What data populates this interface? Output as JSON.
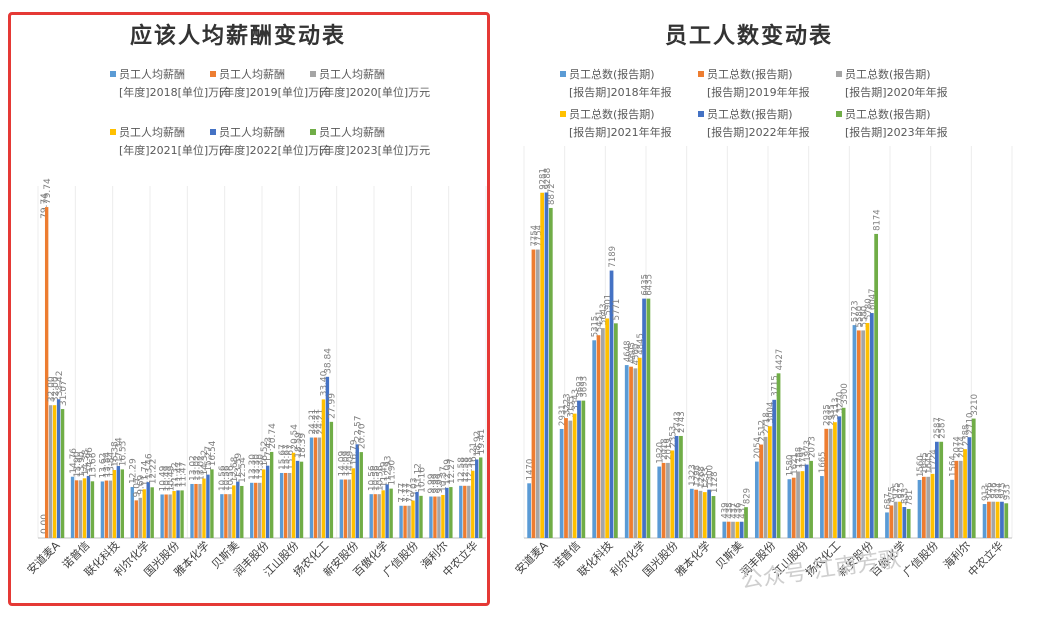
{
  "charts": {
    "left_title": "应该人均薪酬变动表",
    "right_title": "员工人数变动表"
  },
  "watermark": "公众号·江南芳歌",
  "chart_data": [
    {
      "type": "bar",
      "title": "应该人均薪酬变动表",
      "y_axis_labels": [
        "79.74",
        "0.00"
      ],
      "ylim": [
        0,
        80
      ],
      "legend_position": "top",
      "categories": [
        "安道麦A",
        "诺普信",
        "联化科技",
        "利尔化学",
        "国光股份",
        "雅本化学",
        "贝斯美",
        "润丰股份",
        "江山股份",
        "扬农化工",
        "新安股份",
        "百傲化学",
        "广信股份",
        "海利尔",
        "中农立华"
      ],
      "series": [
        {
          "name": "员工人均薪酬[年度]2018[单位]万元",
          "color": "#5b9bd5",
          "values": [
            null,
            14.76,
            13.62,
            12.29,
            10.49,
            13.02,
            10.56,
            13.3,
            15.67,
            24.21,
            14.09,
            10.56,
            7.77,
            9.99,
            12.58
          ]
        },
        {
          "name": "员工人均薪酬[年度]2019[单位]万元",
          "color": "#ed7d31",
          "values": [
            79.74,
            13.9,
            13.84,
            9.07,
            10.49,
            13.02,
            10.56,
            13.3,
            15.67,
            24.21,
            14.09,
            10.56,
            7.77,
            9.99,
            12.58
          ]
        },
        {
          "name": "员工人均薪酬[年度]2020[单位]万元",
          "color": "#a5a5a5",
          "values": [
            32.0,
            13.9,
            13.84,
            9.69,
            10.49,
            13.02,
            10.56,
            13.3,
            15.67,
            24.21,
            14.09,
            10.56,
            7.77,
            9.99,
            12.58
          ]
        },
        {
          "name": "员工人均薪酬[年度]2021[单位]万元",
          "color": "#ffc000",
          "values": [
            32.0,
            14.38,
            16.38,
            11.74,
            11.32,
            14.32,
            12.68,
            16.52,
            20.54,
            33.4,
            16.79,
            11.49,
            9.03,
            10.37,
            16.21
          ]
        },
        {
          "name": "员工人均薪酬[年度]2022[单位]万元",
          "color": "#4472c4",
          "values": [
            33.42,
            14.96,
            17.34,
            13.46,
            11.47,
            15.27,
            13.59,
            17.43,
            18.59,
            38.84,
            22.57,
            12.93,
            11.12,
            12.09,
            18.92
          ]
        },
        {
          "name": "员工人均薪酬[年度]2023[单位]万元",
          "color": "#70ad47",
          "values": [
            31.07,
            13.66,
            16.53,
            12.22,
            11.47,
            16.54,
            12.54,
            20.74,
            18.39,
            27.99,
            20.7,
            11.9,
            10.16,
            12.27,
            19.41
          ]
        }
      ]
    },
    {
      "type": "bar",
      "title": "员工人数变动表",
      "ylim": [
        0,
        10000
      ],
      "legend_position": "top",
      "categories": [
        "安道麦A",
        "诺普信",
        "联化科技",
        "利尔化学",
        "国光股份",
        "雅本化学",
        "贝斯美",
        "润丰股份",
        "江山股份",
        "扬农化工",
        "新安股份",
        "百傲化学",
        "广信股份",
        "海利尔",
        "中农立华"
      ],
      "series": [
        {
          "name": "员工总数(报告期)[报告期]2018年年报",
          "color": "#5b9bd5",
          "values": [
            1470,
            2931,
            5315,
            4648,
            1920,
            1323,
            439,
            2054,
            1580,
            1665,
            5723,
            687,
            1560,
            1564,
            913
          ]
        },
        {
          "name": "员工总数(报告期)[报告期]2019年年报",
          "color": "#ed7d31",
          "values": [
            7754,
            3223,
            5451,
            4605,
            2018,
            1298,
            438,
            2512,
            1621,
            2935,
            5580,
            875,
            1645,
            2074,
            976
          ]
        },
        {
          "name": "员工总数(报告期)[报告期]2020年年报",
          "color": "#a5a5a5",
          "values": [
            7754,
            3155,
            5643,
            4560,
            2019,
            1268,
            437,
            2718,
            1788,
            2935,
            5580,
            975,
            1645,
            2074,
            976
          ]
        },
        {
          "name": "员工总数(报告期)[报告期]2021年年报",
          "color": "#ffc000",
          "values": [
            9281,
            3343,
            5901,
            4845,
            2353,
            1233,
            436,
            3004,
            1797,
            3113,
            5780,
            975,
            1724,
            2388,
            974
          ]
        },
        {
          "name": "员工总数(报告期)[报告期]2022年年报",
          "color": "#4472c4",
          "values": [
            9288,
            3693,
            7189,
            6435,
            2743,
            1300,
            437,
            3715,
            1973,
            3270,
            6047,
            833,
            2587,
            2710,
            975
          ]
        },
        {
          "name": "员工总数(报告期)[报告期]2023年年报",
          "color": "#70ad47",
          "values": [
            8872,
            3693,
            5771,
            6435,
            2743,
            1128,
            829,
            4427,
            2073,
            3500,
            8174,
            781,
            2587,
            3210,
            933
          ]
        }
      ]
    }
  ]
}
